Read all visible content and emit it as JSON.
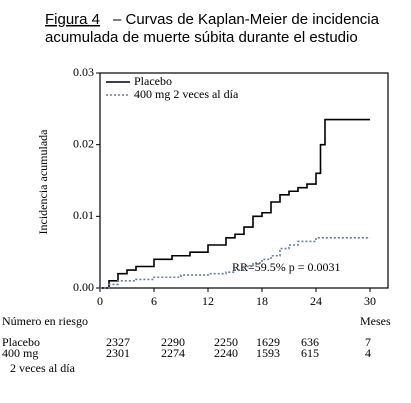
{
  "chart_data": {
    "type": "step",
    "title_label": "Figura 4",
    "title": "– Curvas de Kaplan-Meier de incidencia",
    "title_line2": "acumulada de muerte súbita durante el estudio",
    "y_label": "Incidencia acumulada",
    "x_label": "Meses",
    "annotation": "RR=59.5%   p = 0.0031",
    "xlim": [
      0,
      32
    ],
    "xticks": [
      0,
      6,
      12,
      18,
      24,
      30
    ],
    "ylim": [
      0,
      0.03
    ],
    "yticks": [
      {
        "value": 0,
        "label": "0.00"
      },
      {
        "value": 0.01,
        "label": "0.01"
      },
      {
        "value": 0.02,
        "label": "0.02"
      },
      {
        "value": 0.03,
        "label": "0.03"
      }
    ],
    "legend": "upper left",
    "series": [
      {
        "name": "Placebo",
        "color": "#000000",
        "dash": false,
        "x": [
          0,
          1,
          2,
          3,
          4,
          6,
          8,
          10,
          12,
          14,
          15,
          16,
          17,
          18,
          19,
          20,
          21,
          22,
          23,
          24,
          24.5,
          25,
          30
        ],
        "values": [
          0,
          0.001,
          0.002,
          0.0025,
          0.003,
          0.004,
          0.0045,
          0.005,
          0.006,
          0.007,
          0.0075,
          0.0085,
          0.01,
          0.0105,
          0.012,
          0.013,
          0.0135,
          0.014,
          0.0145,
          0.016,
          0.02,
          0.0235,
          0.0235
        ]
      },
      {
        "name": "400 mg  2 veces al día",
        "color": "#6a7f9c",
        "dash": true,
        "x": [
          0,
          1,
          2,
          4,
          6,
          9,
          12,
          14,
          15,
          16,
          17,
          18,
          19,
          20,
          21,
          22,
          24,
          30
        ],
        "values": [
          0,
          0.0005,
          0.001,
          0.0012,
          0.0015,
          0.0018,
          0.002,
          0.0022,
          0.0025,
          0.003,
          0.0035,
          0.004,
          0.0045,
          0.0055,
          0.006,
          0.0065,
          0.007,
          0.007
        ]
      }
    ],
    "risk_table": {
      "title": "Número en riesgo",
      "rows": [
        {
          "name": "Placebo",
          "values": [
            "2327",
            "2290",
            "2250",
            "1629",
            "636",
            "7"
          ]
        },
        {
          "name": "400 mg",
          "values": [
            "2301",
            "2274",
            "2240",
            "1593",
            "615",
            "4"
          ]
        }
      ],
      "note": "2 veces al día"
    }
  }
}
